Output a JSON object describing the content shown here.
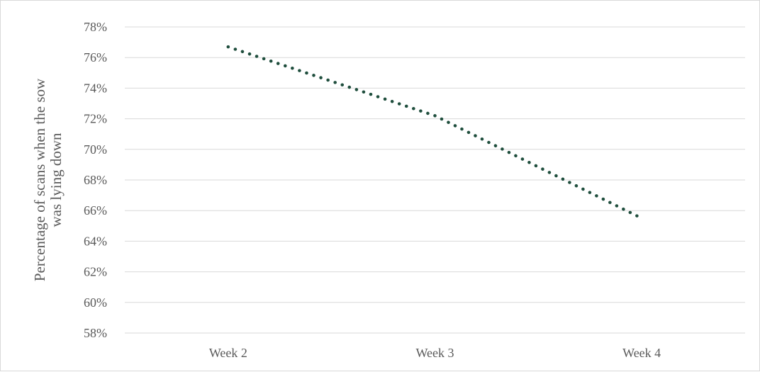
{
  "chart_data": {
    "type": "line",
    "categories": [
      "Week 2",
      "Week 3",
      "Week 4"
    ],
    "series": [
      {
        "values": [
          76.7,
          72.2,
          65.5
        ],
        "color": "#1f4e3d",
        "line_style": "dotted"
      }
    ],
    "ylabel": "Percentage of scans when the sow was lying down",
    "ylabel_lines": [
      "Percentage of scans when the sow",
      "was lying down"
    ],
    "xlabel": "",
    "ylim": [
      58,
      78
    ],
    "ytick_step": 2,
    "ytick_suffix": "%",
    "grid": true,
    "legend": "none"
  }
}
